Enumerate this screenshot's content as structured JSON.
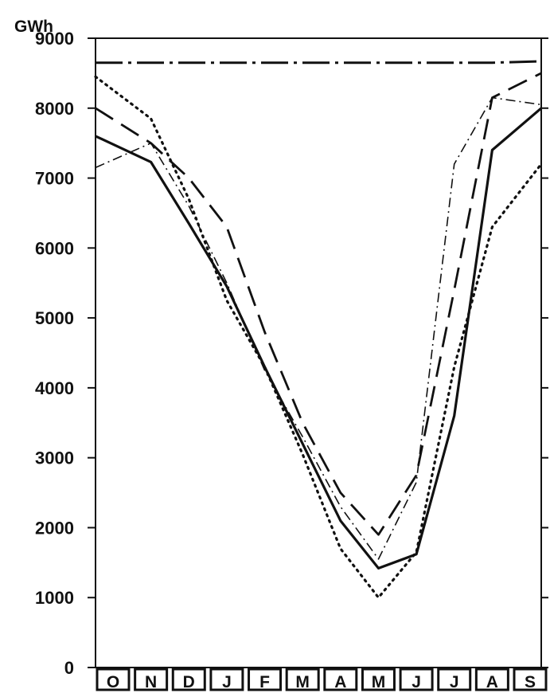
{
  "chart_data": {
    "type": "line",
    "ylabel": "GWh",
    "ylim": [
      0,
      9000
    ],
    "yticks": [
      "0",
      "1000",
      "2000",
      "3000",
      "4000",
      "5000",
      "6000",
      "7000",
      "8000",
      "9000"
    ],
    "categories": [
      "O",
      "N",
      "D",
      "J",
      "F",
      "M",
      "A",
      "M",
      "J",
      "J",
      "A",
      "S"
    ],
    "grid": false,
    "series": [
      {
        "style": "solid",
        "values": [
          7600,
          7230,
          6350,
          5450,
          4300,
          3200,
          2100,
          1420,
          1620,
          3600,
          7400,
          8000
        ]
      },
      {
        "style": "long-dash",
        "values": [
          8000,
          7500,
          7000,
          6300,
          4800,
          3500,
          2500,
          1900,
          2750,
          5400,
          8150,
          8500
        ]
      },
      {
        "style": "dotted",
        "values": [
          8450,
          7850,
          6700,
          5250,
          4300,
          3050,
          1700,
          1000,
          1650,
          4300,
          6300,
          7200
        ]
      },
      {
        "style": "dash-dot",
        "values": [
          7150,
          7500,
          6600,
          5500,
          4250,
          3300,
          2300,
          1550,
          2650,
          7200,
          8150,
          8050
        ]
      },
      {
        "style": "long-dash-dot",
        "values": [
          8650,
          8650,
          8650,
          8650,
          8650,
          8650,
          8650,
          8650,
          8650,
          8650,
          8650,
          8670
        ]
      }
    ],
    "colors": {
      "line": "#111111",
      "frame": "#111111",
      "background": "#ffffff"
    }
  }
}
